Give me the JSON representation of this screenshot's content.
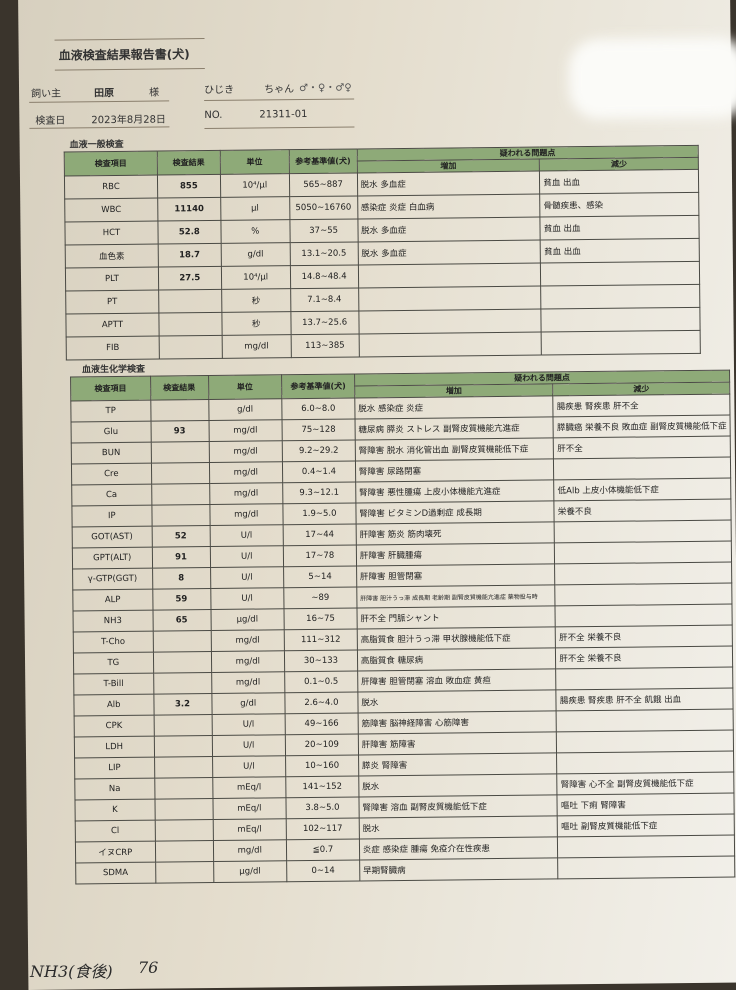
{
  "header": {
    "title": "血液検査結果報告書(犬)",
    "owner_label": "飼い主",
    "owner_name": "田原",
    "owner_suffix": "様",
    "pet_name": "ひじき",
    "pet_suffix": "ちゃん",
    "sex_options": "♂・♀・♂♀",
    "date_label": "検査日",
    "date": "2023年8月28日",
    "no_label": "NO.",
    "no": "21311-01"
  },
  "cbc": {
    "section": "血液一般検査",
    "columns": [
      "検査項目",
      "検査結果",
      "単位",
      "参考基準値(犬)",
      "疑われる問題点",
      "増加",
      "減少"
    ],
    "rows": [
      [
        "RBC",
        "855",
        "10⁴/μl",
        "565~887",
        "脱水 多血症",
        "貧血 出血"
      ],
      [
        "WBC",
        "11140",
        "μl",
        "5050~16760",
        "感染症 炎症 白血病",
        "骨髄疾患、感染"
      ],
      [
        "HCT",
        "52.8",
        "%",
        "37~55",
        "脱水 多血症",
        "貧血 出血"
      ],
      [
        "血色素",
        "18.7",
        "g/dl",
        "13.1~20.5",
        "脱水 多血症",
        "貧血 出血"
      ],
      [
        "PLT",
        "27.5",
        "10⁴/μl",
        "14.8~48.4",
        "",
        ""
      ],
      [
        "PT",
        "",
        "秒",
        "7.1~8.4",
        "",
        ""
      ],
      [
        "APTT",
        "",
        "秒",
        "13.7~25.6",
        "",
        ""
      ],
      [
        "FIB",
        "",
        "mg/dl",
        "113~385",
        "",
        ""
      ]
    ]
  },
  "chem": {
    "section": "血液生化学検査",
    "columns": [
      "検査項目",
      "検査結果",
      "単位",
      "参考基準値(犬)",
      "疑われる問題点",
      "増加",
      "減少"
    ],
    "rows": [
      [
        "TP",
        "",
        "g/dl",
        "6.0~8.0",
        "脱水 感染症 炎症",
        "腸疾患 腎疾患 肝不全"
      ],
      [
        "Glu",
        "93",
        "mg/dl",
        "75~128",
        "糖尿病 膵炎 ストレス 副腎皮質機能亢進症",
        "膵臓癌 栄養不良 敗血症 副腎皮質機能低下症"
      ],
      [
        "BUN",
        "",
        "mg/dl",
        "9.2~29.2",
        "腎障害 脱水 消化管出血 副腎皮質機能低下症",
        "肝不全"
      ],
      [
        "Cre",
        "",
        "mg/dl",
        "0.4~1.4",
        "腎障害 尿路閉塞",
        ""
      ],
      [
        "Ca",
        "",
        "mg/dl",
        "9.3~12.1",
        "腎障害 悪性腫瘍 上皮小体機能亢進症",
        "低Alb 上皮小体機能低下症"
      ],
      [
        "IP",
        "",
        "mg/dl",
        "1.9~5.0",
        "腎障害 ビタミンD過剰症 成長期",
        "栄養不良"
      ],
      [
        "GOT(AST)",
        "52",
        "U/l",
        "17~44",
        "肝障害 筋炎 筋肉壊死",
        ""
      ],
      [
        "GPT(ALT)",
        "91",
        "U/l",
        "17~78",
        "肝障害 肝臓腫瘍",
        ""
      ],
      [
        "γ-GTP(GGT)",
        "8",
        "U/l",
        "5~14",
        "肝障害 胆管閉塞",
        ""
      ],
      [
        "ALP",
        "59",
        "U/l",
        "~89",
        "肝障害 胆汁うっ滞 成長期 老齢期 副腎皮質機能亢進症 薬物投与時",
        ""
      ],
      [
        "NH3",
        "65",
        "μg/dl",
        "16~75",
        "肝不全 門脈シャント",
        ""
      ],
      [
        "T-Cho",
        "",
        "mg/dl",
        "111~312",
        "高脂質食 胆汁うっ滞 甲状腺機能低下症",
        "肝不全 栄養不良"
      ],
      [
        "TG",
        "",
        "mg/dl",
        "30~133",
        "高脂質食 糖尿病",
        "肝不全 栄養不良"
      ],
      [
        "T-Bill",
        "",
        "mg/dl",
        "0.1~0.5",
        "肝障害 胆管閉塞 溶血 敗血症 黄疸",
        ""
      ],
      [
        "Alb",
        "3.2",
        "g/dl",
        "2.6~4.0",
        "脱水",
        "腸疾患 腎疾患 肝不全 飢餓 出血"
      ],
      [
        "CPK",
        "",
        "U/l",
        "49~166",
        "筋障害 脳神経障害 心筋障害",
        ""
      ],
      [
        "LDH",
        "",
        "U/l",
        "20~109",
        "肝障害 筋障害",
        ""
      ],
      [
        "LIP",
        "",
        "U/l",
        "10~160",
        "膵炎 腎障害",
        ""
      ],
      [
        "Na",
        "",
        "mEq/l",
        "141~152",
        "脱水",
        "腎障害 心不全 副腎皮質機能低下症"
      ],
      [
        "K",
        "",
        "mEq/l",
        "3.8~5.0",
        "腎障害 溶血 副腎皮質機能低下症",
        "嘔吐 下痢 腎障害"
      ],
      [
        "Cl",
        "",
        "mEq/l",
        "102~117",
        "脱水",
        "嘔吐 副腎皮質機能低下症"
      ],
      [
        "イヌCRP",
        "",
        "mg/dl",
        "≦0.7",
        "炎症 感染症 腫瘍 免疫介在性疾患",
        ""
      ],
      [
        "SDMA",
        "",
        "μg/dl",
        "0~14",
        "早期腎臓病",
        ""
      ]
    ]
  },
  "note": {
    "text": "NH3(食後)",
    "value": "76"
  },
  "colors": {
    "header_green": "#8eaa78",
    "paper": "#e4ddcd",
    "ink": "#222222"
  }
}
